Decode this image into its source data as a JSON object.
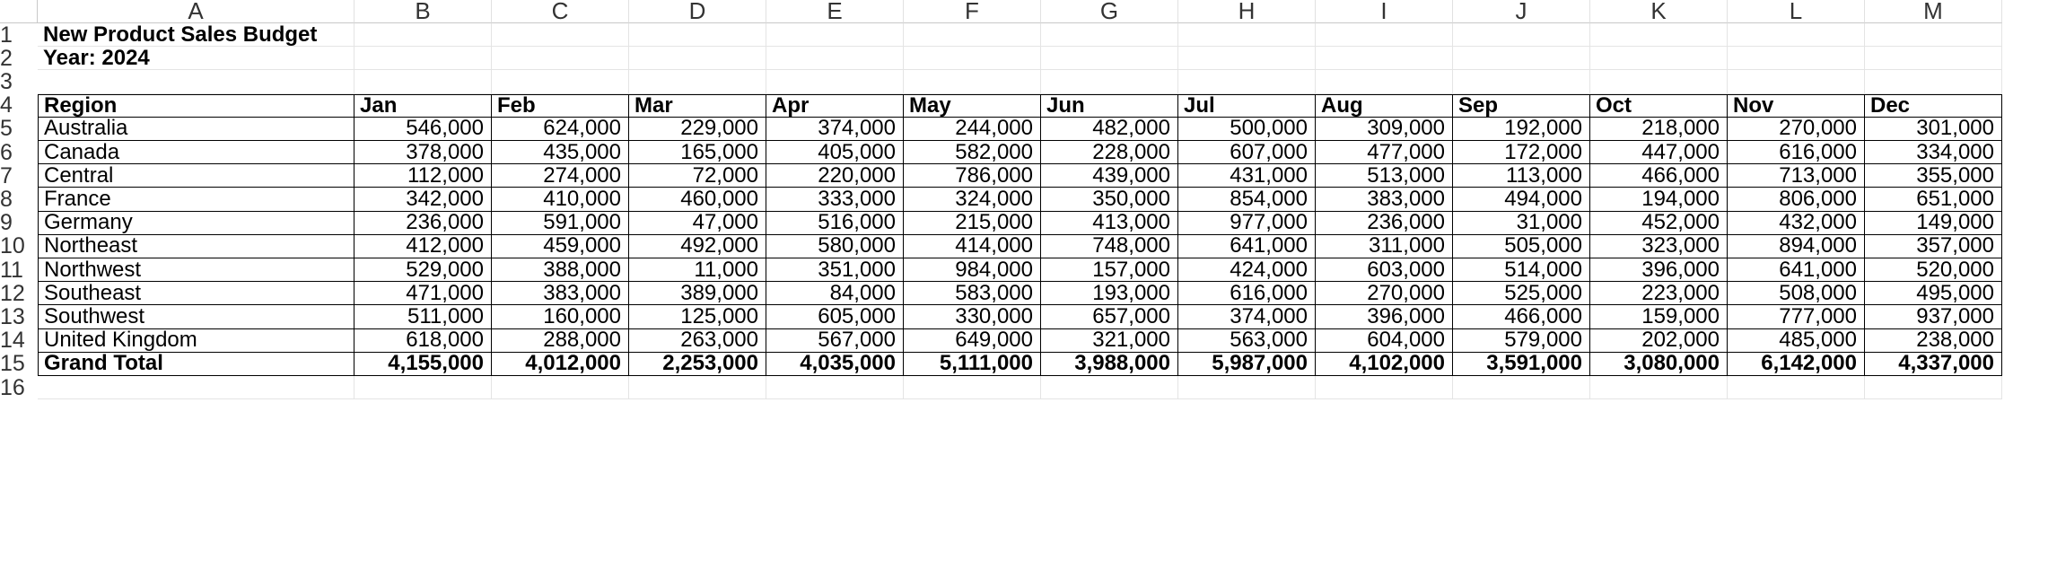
{
  "column_headers": [
    "A",
    "B",
    "C",
    "D",
    "E",
    "F",
    "G",
    "H",
    "I",
    "J",
    "K",
    "L",
    "M"
  ],
  "row_numbers": [
    "1",
    "2",
    "3",
    "4",
    "5",
    "6",
    "7",
    "8",
    "9",
    "10",
    "11",
    "12",
    "13",
    "14",
    "15",
    "16"
  ],
  "title": "New Product Sales Budget",
  "year_label": "Year: 2024",
  "table": {
    "headers": [
      "Region",
      "Jan",
      "Feb",
      "Mar",
      "Apr",
      "May",
      "Jun",
      "Jul",
      "Aug",
      "Sep",
      "Oct",
      "Nov",
      "Dec"
    ],
    "rows": [
      [
        "Australia",
        "546,000",
        "624,000",
        "229,000",
        "374,000",
        "244,000",
        "482,000",
        "500,000",
        "309,000",
        "192,000",
        "218,000",
        "270,000",
        "301,000"
      ],
      [
        "Canada",
        "378,000",
        "435,000",
        "165,000",
        "405,000",
        "582,000",
        "228,000",
        "607,000",
        "477,000",
        "172,000",
        "447,000",
        "616,000",
        "334,000"
      ],
      [
        "Central",
        "112,000",
        "274,000",
        "72,000",
        "220,000",
        "786,000",
        "439,000",
        "431,000",
        "513,000",
        "113,000",
        "466,000",
        "713,000",
        "355,000"
      ],
      [
        "France",
        "342,000",
        "410,000",
        "460,000",
        "333,000",
        "324,000",
        "350,000",
        "854,000",
        "383,000",
        "494,000",
        "194,000",
        "806,000",
        "651,000"
      ],
      [
        "Germany",
        "236,000",
        "591,000",
        "47,000",
        "516,000",
        "215,000",
        "413,000",
        "977,000",
        "236,000",
        "31,000",
        "452,000",
        "432,000",
        "149,000"
      ],
      [
        "Northeast",
        "412,000",
        "459,000",
        "492,000",
        "580,000",
        "414,000",
        "748,000",
        "641,000",
        "311,000",
        "505,000",
        "323,000",
        "894,000",
        "357,000"
      ],
      [
        "Northwest",
        "529,000",
        "388,000",
        "11,000",
        "351,000",
        "984,000",
        "157,000",
        "424,000",
        "603,000",
        "514,000",
        "396,000",
        "641,000",
        "520,000"
      ],
      [
        "Southeast",
        "471,000",
        "383,000",
        "389,000",
        "84,000",
        "583,000",
        "193,000",
        "616,000",
        "270,000",
        "525,000",
        "223,000",
        "508,000",
        "495,000"
      ],
      [
        "Southwest",
        "511,000",
        "160,000",
        "125,000",
        "605,000",
        "330,000",
        "657,000",
        "374,000",
        "396,000",
        "466,000",
        "159,000",
        "777,000",
        "937,000"
      ],
      [
        "United Kingdom",
        "618,000",
        "288,000",
        "263,000",
        "567,000",
        "649,000",
        "321,000",
        "563,000",
        "604,000",
        "579,000",
        "202,000",
        "485,000",
        "238,000"
      ]
    ],
    "total": [
      "Grand Total",
      "4,155,000",
      "4,012,000",
      "2,253,000",
      "4,035,000",
      "5,111,000",
      "3,988,000",
      "5,987,000",
      "4,102,000",
      "3,591,000",
      "3,080,000",
      "6,142,000",
      "4,337,000"
    ]
  }
}
